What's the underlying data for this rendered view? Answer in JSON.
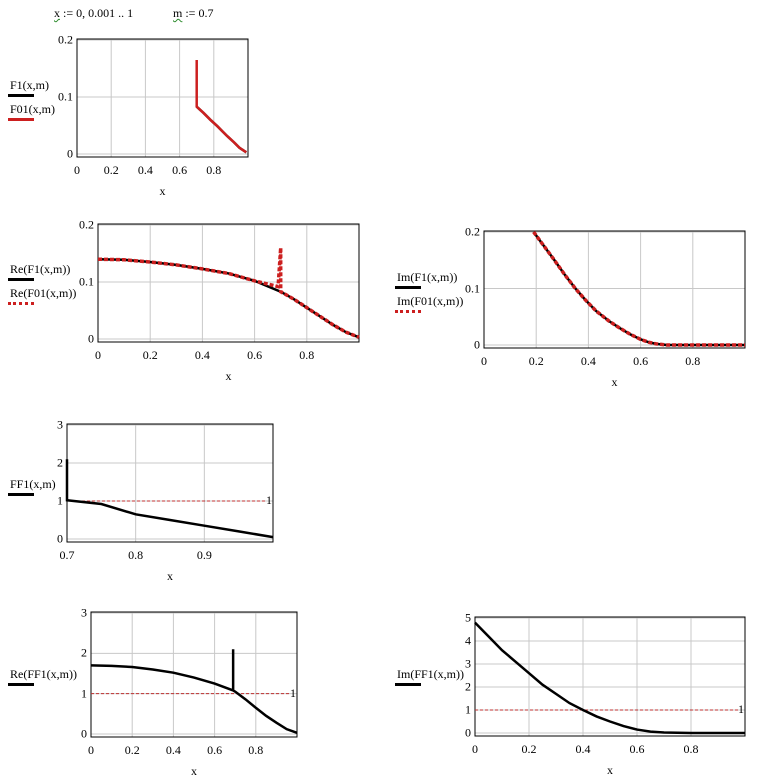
{
  "definitions": [
    {
      "var": "x",
      "expr": " := 0, 0.001 .. 1"
    },
    {
      "var": "m",
      "expr": " := 0.7"
    }
  ],
  "colors": {
    "black": "#000000",
    "red": "#cc1f1f",
    "grid": "#c8c8c8",
    "ref": "#c03030"
  },
  "chart_data": [
    {
      "type": "line",
      "xlabel": "x",
      "xlim": [
        0,
        1
      ],
      "ylim": [
        0,
        0.2
      ],
      "xticks": [
        "0",
        "0.2",
        "0.4",
        "0.6",
        "0.8"
      ],
      "xtickvals": [
        0,
        0.2,
        0.4,
        0.6,
        0.8
      ],
      "yticks": [
        "0",
        "0.1",
        "0.2"
      ],
      "ytickvals": [
        0,
        0.1,
        0.2
      ],
      "series": [
        {
          "name": "F1(x,m)",
          "style": "solid",
          "color": "#000000",
          "x": [
            0.7,
            0.74,
            0.78,
            0.82,
            0.85,
            0.88,
            0.92,
            0.95,
            0.99
          ],
          "y": [
            0.083,
            0.072,
            0.06,
            0.049,
            0.04,
            0.031,
            0.02,
            0.011,
            0.003
          ]
        },
        {
          "name": "F01(x,m)",
          "style": "solid",
          "color": "#cc1f1f",
          "x": [
            0.7,
            0.7,
            0.74,
            0.78,
            0.82,
            0.85,
            0.88,
            0.92,
            0.95,
            0.99
          ],
          "y": [
            0.165,
            0.083,
            0.072,
            0.06,
            0.049,
            0.04,
            0.031,
            0.02,
            0.011,
            0.003
          ]
        }
      ]
    },
    {
      "type": "line",
      "xlabel": "x",
      "xlim": [
        0,
        1
      ],
      "ylim": [
        0,
        0.2
      ],
      "xticks": [
        "0",
        "0.2",
        "0.4",
        "0.6",
        "0.8"
      ],
      "xtickvals": [
        0,
        0.2,
        0.4,
        0.6,
        0.8
      ],
      "yticks": [
        "0",
        "0.1",
        "0.2"
      ],
      "ytickvals": [
        0,
        0.1,
        0.2
      ],
      "series": [
        {
          "name": "Re(F1(x,m))",
          "style": "solid",
          "color": "#000000",
          "x": [
            0,
            0.1,
            0.2,
            0.3,
            0.4,
            0.5,
            0.6,
            0.7,
            0.75,
            0.8,
            0.85,
            0.9,
            0.95,
            1
          ],
          "y": [
            0.14,
            0.139,
            0.135,
            0.13,
            0.123,
            0.115,
            0.102,
            0.083,
            0.07,
            0.055,
            0.04,
            0.025,
            0.012,
            0.003
          ]
        },
        {
          "name": "Re(F01(x,m))",
          "style": "dotted",
          "color": "#cc1f1f",
          "x": [
            0,
            0.1,
            0.2,
            0.3,
            0.4,
            0.5,
            0.6,
            0.69,
            0.7,
            0.7,
            0.75,
            0.8,
            0.85,
            0.9,
            0.95,
            1
          ],
          "y": [
            0.14,
            0.139,
            0.135,
            0.13,
            0.123,
            0.115,
            0.102,
            0.092,
            0.16,
            0.083,
            0.07,
            0.055,
            0.04,
            0.025,
            0.012,
            0.003
          ]
        }
      ]
    },
    {
      "type": "line",
      "xlabel": "x",
      "xlim": [
        0,
        1
      ],
      "ylim": [
        0,
        0.2
      ],
      "xticks": [
        "0",
        "0.2",
        "0.4",
        "0.6",
        "0.8"
      ],
      "xtickvals": [
        0,
        0.2,
        0.4,
        0.6,
        0.8
      ],
      "yticks": [
        "0",
        "0.1",
        "0.2"
      ],
      "ytickvals": [
        0,
        0.1,
        0.2
      ],
      "series": [
        {
          "name": "Im(F1(x,m))",
          "style": "solid",
          "color": "#000000",
          "x": [
            0.19,
            0.23,
            0.27,
            0.31,
            0.35,
            0.39,
            0.43,
            0.48,
            0.52,
            0.56,
            0.6,
            0.63,
            0.66,
            0.7,
            0.8,
            0.9,
            1
          ],
          "y": [
            0.2,
            0.175,
            0.15,
            0.124,
            0.1,
            0.079,
            0.06,
            0.042,
            0.03,
            0.019,
            0.01,
            0.005,
            0.002,
            0,
            0,
            0,
            0
          ]
        },
        {
          "name": "Im(F01(x,m))",
          "style": "dotted",
          "color": "#cc1f1f",
          "x": [
            0.19,
            0.23,
            0.27,
            0.31,
            0.35,
            0.39,
            0.43,
            0.48,
            0.52,
            0.56,
            0.6,
            0.63,
            0.66,
            0.7,
            0.8,
            0.9,
            1
          ],
          "y": [
            0.2,
            0.175,
            0.15,
            0.124,
            0.1,
            0.079,
            0.06,
            0.042,
            0.03,
            0.019,
            0.01,
            0.005,
            0.002,
            0,
            0,
            0,
            0
          ]
        }
      ]
    },
    {
      "type": "line",
      "xlabel": "x",
      "xlim": [
        0.7,
        1
      ],
      "ylim": [
        0,
        3
      ],
      "xticks": [
        "0.7",
        "0.8",
        "0.9"
      ],
      "xtickvals": [
        0.7,
        0.8,
        0.9
      ],
      "yticks": [
        "0",
        "1",
        "2",
        "3"
      ],
      "ytickvals": [
        0,
        1,
        2,
        3
      ],
      "refline": {
        "y": 1,
        "label": "1"
      },
      "series": [
        {
          "name": "FF1(x,m)",
          "style": "solid",
          "color": "#000000",
          "x": [
            0.7,
            0.7,
            0.75,
            0.8,
            0.85,
            0.9,
            0.95,
            1
          ],
          "y": [
            2.1,
            1.02,
            0.92,
            0.65,
            0.5,
            0.35,
            0.2,
            0.05
          ]
        }
      ]
    },
    {
      "type": "line",
      "xlabel": "x",
      "xlim": [
        0,
        1
      ],
      "ylim": [
        0,
        3
      ],
      "xticks": [
        "0",
        "0.2",
        "0.4",
        "0.6",
        "0.8"
      ],
      "xtickvals": [
        0,
        0.2,
        0.4,
        0.6,
        0.8
      ],
      "yticks": [
        "0",
        "1",
        "2",
        "3"
      ],
      "ytickvals": [
        0,
        1,
        2,
        3
      ],
      "refline": {
        "y": 1,
        "label": "1"
      },
      "series": [
        {
          "name": "Re(FF1(x,m))",
          "style": "solid",
          "color": "#000000",
          "x": [
            0,
            0.1,
            0.2,
            0.3,
            0.4,
            0.5,
            0.6,
            0.69,
            0.69,
            0.69,
            0.7,
            0.75,
            0.8,
            0.85,
            0.9,
            0.95,
            1
          ],
          "y": [
            1.7,
            1.69,
            1.66,
            1.6,
            1.52,
            1.4,
            1.25,
            1.08,
            2.1,
            1.08,
            1.05,
            0.86,
            0.65,
            0.45,
            0.28,
            0.12,
            0.03
          ]
        }
      ]
    },
    {
      "type": "line",
      "xlabel": "x",
      "xlim": [
        0,
        1
      ],
      "ylim": [
        0,
        5
      ],
      "xticks": [
        "0",
        "0.2",
        "0.4",
        "0.6",
        "0.8"
      ],
      "xtickvals": [
        0,
        0.2,
        0.4,
        0.6,
        0.8
      ],
      "yticks": [
        "0",
        "1",
        "2",
        "3",
        "4",
        "5"
      ],
      "ytickvals": [
        0,
        1,
        2,
        3,
        4,
        5
      ],
      "refline": {
        "y": 1,
        "label": "1"
      },
      "series": [
        {
          "name": "Im(FF1(x,m))",
          "style": "solid",
          "color": "#000000",
          "x": [
            0,
            0.05,
            0.1,
            0.15,
            0.2,
            0.25,
            0.3,
            0.35,
            0.4,
            0.45,
            0.5,
            0.55,
            0.6,
            0.65,
            0.7,
            0.8,
            0.9,
            1
          ],
          "y": [
            4.8,
            4.2,
            3.6,
            3.1,
            2.6,
            2.1,
            1.7,
            1.3,
            1.0,
            0.72,
            0.5,
            0.3,
            0.15,
            0.06,
            0.02,
            0,
            0,
            0
          ]
        }
      ]
    }
  ]
}
